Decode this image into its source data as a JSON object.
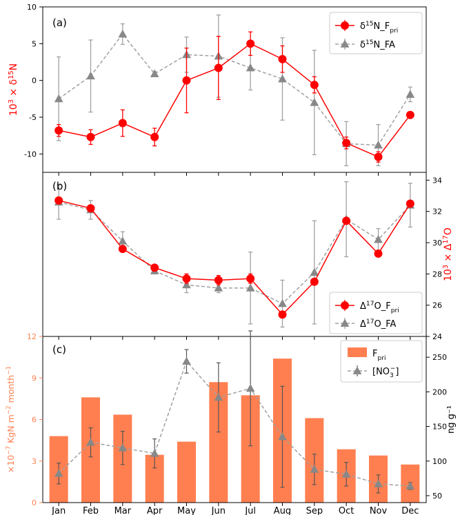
{
  "months": [
    "Jan",
    "Feb",
    "Mar",
    "Apr",
    "May",
    "Jun",
    "Jul",
    "Aug",
    "Sep",
    "Oct",
    "Nov",
    "Dec"
  ],
  "chart_data": [
    {
      "type": "line",
      "panel_label": "(a)",
      "ylabel_parts": [
        "10",
        "3",
        " × δ",
        "15",
        "N"
      ],
      "ylim": [
        -12.5,
        10
      ],
      "yticks": [
        -10,
        -5,
        0,
        5,
        10
      ],
      "legend_position": "top-right",
      "series": [
        {
          "name_parts": [
            "δ",
            "15",
            "N_F",
            "pri"
          ],
          "color": "#ff0000",
          "marker": "circle",
          "values": [
            -6.8,
            -7.7,
            -5.8,
            -7.7,
            0.0,
            1.7,
            5.0,
            2.9,
            -0.6,
            -8.5,
            -10.4,
            -4.7
          ],
          "err": [
            0.8,
            1.0,
            1.8,
            1.2,
            4.4,
            4.3,
            1.6,
            1.8,
            1.1,
            0.8,
            0.7,
            0.0
          ]
        },
        {
          "name_parts": [
            "δ",
            "15",
            "N_FA"
          ],
          "color": "#a0a0a0",
          "marker": "triangle",
          "values": [
            -2.5,
            0.6,
            6.3,
            0.9,
            3.5,
            3.3,
            1.7,
            0.2,
            -3.0,
            -8.6,
            -8.8,
            -1.9
          ],
          "err": [
            5.7,
            4.9,
            1.4,
            0.3,
            2.4,
            5.6,
            3.0,
            5.6,
            7.1,
            3.0,
            2.8,
            1.0
          ]
        }
      ]
    },
    {
      "type": "line",
      "panel_label": "(b)",
      "ylabel_parts": [
        "10",
        "3",
        " × Δ",
        "17",
        "O"
      ],
      "ylim": [
        24,
        34.5
      ],
      "yticks": [
        24,
        26,
        28,
        30,
        32,
        34
      ],
      "legend_position": "bottom-right",
      "series": [
        {
          "name_parts": [
            "Δ",
            "17",
            "O_F",
            "pri"
          ],
          "color": "#ff0000",
          "marker": "circle",
          "values": [
            32.7,
            32.2,
            29.6,
            28.4,
            27.7,
            27.6,
            27.7,
            25.4,
            27.5,
            31.4,
            29.3,
            32.5
          ],
          "err": [
            0.0,
            0.0,
            0.0,
            0.0,
            0.3,
            0.3,
            0.3,
            0.0,
            0.0,
            0.0,
            0.0,
            0.0
          ]
        },
        {
          "name_parts": [
            "Δ",
            "17",
            "O_FA"
          ],
          "color": "#a0a0a0",
          "marker": "triangle",
          "values": [
            32.6,
            32.1,
            30.1,
            28.2,
            27.3,
            27.1,
            27.1,
            26.1,
            28.1,
            31.5,
            30.2,
            32.4
          ],
          "err": [
            1.1,
            0.6,
            0.6,
            0.2,
            0.5,
            0.3,
            2.3,
            1.5,
            3.3,
            2.4,
            0.7,
            1.4
          ]
        }
      ]
    },
    {
      "type": "bar",
      "panel_label": "(c)",
      "ylabel_left_parts": [
        "×10",
        "−7",
        " KgN m",
        "−2",
        " month",
        "−1"
      ],
      "ylabel_right": "ng g⁻¹",
      "ylim_left": [
        0,
        12
      ],
      "yticks_left": [
        0,
        3,
        6,
        9,
        12
      ],
      "ylim_right": [
        40,
        280
      ],
      "yticks_right": [
        50,
        100,
        150,
        200,
        250
      ],
      "legend_position": "top-right",
      "bars": {
        "name_parts": [
          "F",
          "pri"
        ],
        "color": "#ff7f50",
        "values": [
          4.8,
          7.6,
          6.35,
          3.45,
          4.4,
          8.7,
          7.75,
          10.4,
          6.1,
          3.85,
          3.4,
          2.75
        ]
      },
      "line": {
        "name_parts": [
          "[NO",
          "3",
          "−",
          "]"
        ],
        "color": "#a0a0a0",
        "marker": "triangle",
        "values": [
          82,
          127,
          119,
          111,
          244,
          192,
          205,
          135,
          88,
          81,
          67,
          64
        ],
        "err": [
          15,
          21,
          24,
          21,
          17,
          50,
          83,
          73,
          22,
          17,
          13,
          5
        ]
      }
    }
  ]
}
